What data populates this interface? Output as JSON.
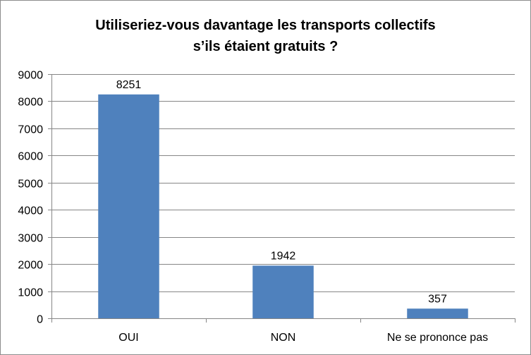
{
  "chart_data": {
    "type": "bar",
    "title_lines": [
      "Utiliseriez-vous davantage les transports collectifs",
      "s’ils étaient gratuits ?"
    ],
    "categories": [
      "OUI",
      "NON",
      "Ne se prononce pas"
    ],
    "values": [
      8251,
      1942,
      357
    ],
    "data_labels": [
      "8251",
      "1942",
      "357"
    ],
    "ylim": [
      0,
      9000
    ],
    "yticks": [
      0,
      1000,
      2000,
      3000,
      4000,
      5000,
      6000,
      7000,
      8000,
      9000
    ],
    "xlabel": "",
    "ylabel": "",
    "grid": true,
    "legend": false,
    "bar_color": "#4f81bd",
    "grid_color": "#868686"
  }
}
